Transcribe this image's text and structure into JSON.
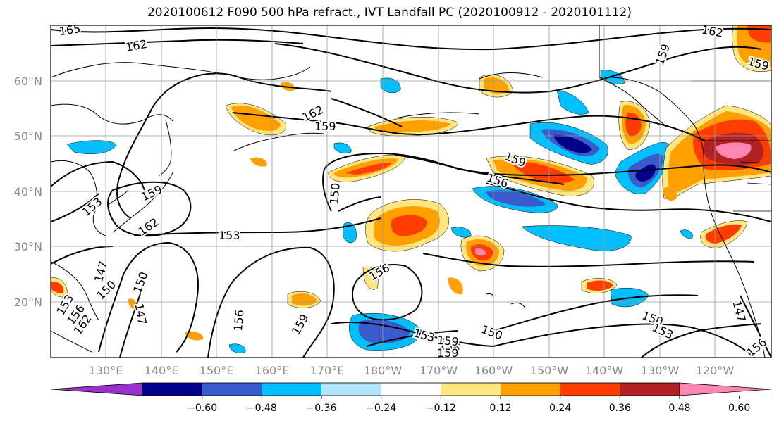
{
  "title": "2020100612 F090 500 hPa refract., IVT Landfall PC (2020100912 - 2020101112)",
  "lat_labels": [
    "60°N",
    "50°N",
    "40°N",
    "30°N",
    "20°N"
  ],
  "lon_labels": [
    "130°E",
    "140°E",
    "150°E",
    "160°E",
    "170°E",
    "180°W",
    "170°W",
    "160°W",
    "150°W",
    "140°W",
    "130°W",
    "120°W"
  ],
  "contour_labels": [
    "165",
    "162",
    "162",
    "159",
    "159",
    "159",
    "156",
    "153",
    "153",
    "162",
    "159",
    "150",
    "153",
    "147",
    "150",
    "147",
    "156",
    "159",
    "156",
    "153",
    "156",
    "150",
    "159",
    "150",
    "153",
    "147",
    "156",
    "162",
    "156",
    "150",
    "159",
    "159",
    "162"
  ],
  "colorbar": {
    "colors": [
      "#9932cc",
      "#00008b",
      "#3a5bcc",
      "#00bfff",
      "#b2e5fa",
      "#ffffff",
      "#ffe680",
      "#ff9f00",
      "#ff3d00",
      "#b22222",
      "#ff85b3"
    ],
    "ticks": [
      "−0.60",
      "−0.48",
      "−0.36",
      "−0.24",
      "−0.12",
      "0.12",
      "0.24",
      "0.36",
      "0.48",
      "0.60"
    ]
  }
}
